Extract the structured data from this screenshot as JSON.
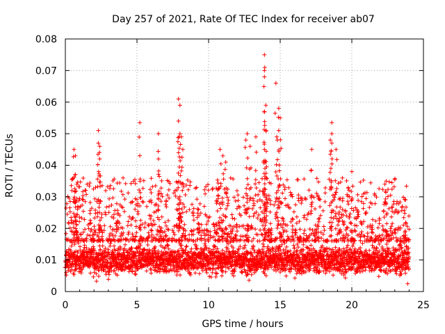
{
  "chart_data": {
    "type": "scatter",
    "title": "Day 257 of 2021, Rate Of TEC Index for receiver ab07",
    "xlabel": "GPS time / hours",
    "ylabel": "ROTI / TECUs",
    "xlim": [
      0,
      25
    ],
    "ylim": [
      0,
      0.08
    ],
    "grid": true,
    "marker": "+",
    "x_ticks": [
      0,
      5,
      10,
      15,
      20,
      25
    ],
    "x_tick_labels": [
      "0",
      "5",
      "10",
      "15",
      "20",
      "25"
    ],
    "y_ticks": [
      0,
      0.01,
      0.02,
      0.03,
      0.04,
      0.05,
      0.06,
      0.07,
      0.08
    ],
    "y_tick_labels": [
      "0",
      "0.01",
      "0.02",
      "0.03",
      "0.04",
      "0.05",
      "0.06",
      "0.07",
      "0.08"
    ],
    "colors": {
      "points": "#ff0000",
      "grid": "#a0a0a0",
      "axes": "#000000"
    },
    "series": [
      {
        "name": "ROTI",
        "x_range": [
          0,
          24
        ],
        "baseline_band": [
          0.004,
          0.016
        ],
        "notable_points": [
          [
            0.6,
            0.045
          ],
          [
            0.7,
            0.043
          ],
          [
            0.7,
            0.037
          ],
          [
            0.8,
            0.034
          ],
          [
            2.3,
            0.051
          ],
          [
            2.3,
            0.047
          ],
          [
            2.4,
            0.046
          ],
          [
            2.4,
            0.042
          ],
          [
            5.2,
            0.0535
          ],
          [
            6.5,
            0.05
          ],
          [
            6.5,
            0.042
          ],
          [
            7.9,
            0.061
          ],
          [
            8.0,
            0.059
          ],
          [
            7.9,
            0.054
          ],
          [
            8.0,
            0.05
          ],
          [
            8.1,
            0.049
          ],
          [
            8.2,
            0.045
          ],
          [
            10.8,
            0.045
          ],
          [
            11.0,
            0.043
          ],
          [
            11.2,
            0.041
          ],
          [
            12.7,
            0.05
          ],
          [
            12.6,
            0.048
          ],
          [
            12.9,
            0.046
          ],
          [
            13.3,
            0.049
          ],
          [
            13.9,
            0.075
          ],
          [
            13.9,
            0.07
          ],
          [
            13.9,
            0.068
          ],
          [
            14.0,
            0.059
          ],
          [
            13.9,
            0.057
          ],
          [
            14.0,
            0.051
          ],
          [
            13.9,
            0.045
          ],
          [
            14.7,
            0.066
          ],
          [
            14.9,
            0.058
          ],
          [
            15.0,
            0.055
          ],
          [
            14.9,
            0.051
          ],
          [
            14.8,
            0.048
          ],
          [
            17.2,
            0.045
          ],
          [
            18.6,
            0.0535
          ],
          [
            18.6,
            0.05
          ],
          [
            18.5,
            0.048
          ],
          [
            18.6,
            0.047
          ],
          [
            18.9,
            0.045
          ],
          [
            20.0,
            0.038
          ],
          [
            22.4,
            0.035
          ],
          [
            22.8,
            0.0345
          ],
          [
            23.9,
            0.0025
          ],
          [
            0.05,
            0.006
          ]
        ]
      }
    ]
  }
}
